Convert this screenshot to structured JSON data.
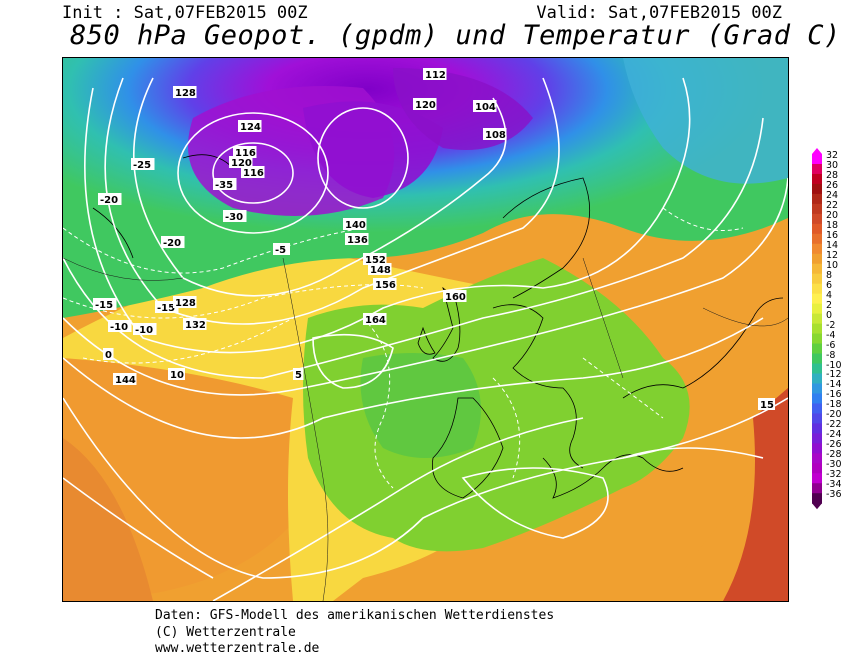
{
  "header": {
    "init": "Init : Sat,07FEB2015 00Z",
    "valid": "Valid: Sat,07FEB2015 00Z",
    "title": "850 hPa Geopot. (gpdm) und Temperatur (Grad C)"
  },
  "colorbar": {
    "labels": [
      "32",
      "30",
      "28",
      "26",
      "24",
      "22",
      "20",
      "18",
      "16",
      "14",
      "12",
      "10",
      "8",
      "6",
      "4",
      "2",
      "0",
      "-2",
      "-4",
      "-6",
      "-8",
      "-10",
      "-12",
      "-14",
      "-16",
      "-18",
      "-20",
      "-22",
      "-24",
      "-26",
      "-28",
      "-30",
      "-32",
      "-34",
      "-36"
    ],
    "colors": [
      "#ff00ff",
      "#e00060",
      "#c00020",
      "#a01010",
      "#b02818",
      "#c03a20",
      "#d04a28",
      "#e05a28",
      "#e8702c",
      "#f08a30",
      "#f0a030",
      "#f5b838",
      "#f8cc40",
      "#fce048",
      "#fff050",
      "#e8f040",
      "#c8e838",
      "#a8e030",
      "#88d830",
      "#60d040",
      "#40c860",
      "#30c090",
      "#30b0c0",
      "#3098e0",
      "#3080f0",
      "#4060f0",
      "#5048e8",
      "#6030e0",
      "#7820d8",
      "#9010d0",
      "#a808c8",
      "#b000c0",
      "#c000d0",
      "#900090",
      "#500050"
    ]
  },
  "map": {
    "geopotential_labels": [
      "128",
      "124",
      "120",
      "116",
      "112",
      "108",
      "104",
      "132",
      "136",
      "140",
      "144",
      "148",
      "152",
      "156",
      "160",
      "164"
    ],
    "temperature_labels": [
      "-35",
      "-30",
      "-25",
      "-20",
      "-15",
      "-10",
      "-5",
      "0",
      "5",
      "10",
      "15"
    ],
    "contour_labels": [
      {
        "t": "128",
        "k": "g"
      },
      {
        "t": "124",
        "k": "g"
      },
      {
        "t": "120",
        "k": "g"
      },
      {
        "t": "116",
        "k": "g"
      },
      {
        "t": "-25",
        "k": "t"
      },
      {
        "t": "-35",
        "k": "t"
      },
      {
        "t": "-30",
        "k": "t"
      },
      {
        "t": "-20",
        "k": "t"
      },
      {
        "t": "-15",
        "k": "t"
      },
      {
        "t": "-10",
        "k": "t"
      },
      {
        "t": "116",
        "k": "g"
      },
      {
        "t": "112",
        "k": "g"
      },
      {
        "t": "-20",
        "k": "t"
      },
      {
        "t": "-15",
        "k": "t"
      },
      {
        "t": "144",
        "k": "g"
      },
      {
        "t": "0",
        "k": "t"
      },
      {
        "t": "140",
        "k": "g"
      },
      {
        "t": "136",
        "k": "g"
      },
      {
        "t": "-10",
        "k": "t"
      },
      {
        "t": "132",
        "k": "g"
      },
      {
        "t": "128",
        "k": "g"
      },
      {
        "t": "-5",
        "k": "t"
      },
      {
        "t": "160",
        "k": "g"
      },
      {
        "t": "164",
        "k": "g"
      },
      {
        "t": "156",
        "k": "g"
      },
      {
        "t": "152",
        "k": "g"
      },
      {
        "t": "148",
        "k": "g"
      },
      {
        "t": "10",
        "k": "t"
      },
      {
        "t": "5",
        "k": "t"
      },
      {
        "t": "15",
        "k": "t"
      },
      {
        "t": "104",
        "k": "g"
      },
      {
        "t": "108",
        "k": "g"
      },
      {
        "t": "120",
        "k": "g"
      }
    ]
  },
  "footer": {
    "line1": "Daten: GFS-Modell des amerikanischen Wetterdienstes",
    "line2": "(C) Wetterzentrale",
    "line3": "www.wetterzentrale.de"
  }
}
